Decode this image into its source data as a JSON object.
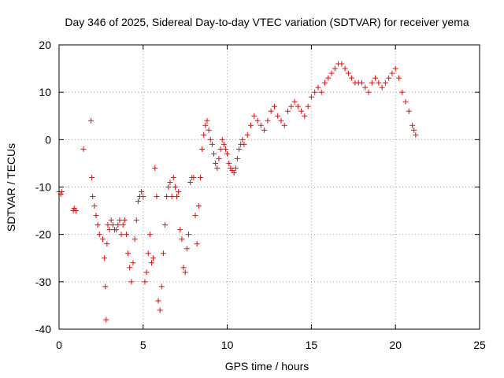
{
  "chart_data": {
    "type": "scatter",
    "title": "Day 346 of 2025, Sidereal Day-to-day VTEC variation (SDTVAR) for receiver yema",
    "xlabel": "GPS time / hours",
    "ylabel": "SDTVAR / TECUs",
    "xlim": [
      0,
      25
    ],
    "ylim": [
      -40,
      20
    ],
    "xticks": [
      0,
      5,
      10,
      15,
      20,
      25
    ],
    "yticks": [
      -40,
      -30,
      -20,
      -10,
      0,
      10,
      20
    ],
    "xtick_labels": [
      "0",
      "5",
      "10",
      "15",
      "20",
      "25"
    ],
    "ytick_labels": [
      "-40",
      "-30",
      "-20",
      "-10",
      "0",
      "10",
      "20"
    ],
    "grid": true,
    "marker": "plus",
    "color": "#ff0000",
    "series": [
      {
        "name": "SDTVAR",
        "x": [
          0.0,
          0.1,
          0.15,
          0.85,
          0.9,
          1.0,
          1.45,
          1.9,
          1.95,
          2.0,
          2.1,
          2.2,
          2.3,
          2.4,
          2.6,
          2.7,
          2.75,
          2.8,
          2.85,
          2.9,
          3.0,
          3.1,
          3.2,
          3.3,
          3.4,
          3.5,
          3.6,
          3.7,
          3.8,
          3.9,
          4.0,
          4.1,
          4.2,
          4.3,
          4.4,
          4.5,
          4.6,
          4.7,
          4.8,
          4.9,
          5.0,
          5.1,
          5.2,
          5.3,
          5.4,
          5.5,
          5.6,
          5.7,
          5.8,
          5.9,
          6.0,
          6.1,
          6.2,
          6.3,
          6.4,
          6.5,
          6.6,
          6.7,
          6.8,
          6.9,
          7.0,
          7.1,
          7.2,
          7.3,
          7.4,
          7.5,
          7.6,
          7.7,
          7.8,
          7.9,
          8.0,
          8.1,
          8.2,
          8.3,
          8.4,
          8.5,
          8.6,
          8.7,
          8.8,
          8.9,
          9.0,
          9.1,
          9.2,
          9.3,
          9.4,
          9.5,
          9.6,
          9.7,
          9.8,
          9.9,
          10.0,
          10.1,
          10.2,
          10.3,
          10.4,
          10.5,
          10.6,
          10.7,
          10.8,
          10.9,
          11.0,
          11.2,
          11.4,
          11.6,
          11.8,
          12.0,
          12.2,
          12.4,
          12.6,
          12.8,
          13.0,
          13.2,
          13.4,
          13.6,
          13.8,
          14.0,
          14.2,
          14.4,
          14.6,
          14.8,
          15.0,
          15.2,
          15.4,
          15.6,
          15.8,
          16.0,
          16.2,
          16.4,
          16.6,
          16.8,
          17.0,
          17.2,
          17.4,
          17.6,
          17.8,
          18.0,
          18.2,
          18.4,
          18.6,
          18.8,
          19.0,
          19.2,
          19.4,
          19.6,
          19.8,
          20.0,
          20.2,
          20.4,
          20.6,
          20.8,
          21.0,
          21.1,
          21.2
        ],
        "y": [
          -11,
          -11.5,
          -11,
          -15,
          -14.5,
          -15,
          -2,
          4,
          -8,
          -12,
          -14,
          -16,
          -18,
          -20,
          -21,
          -25,
          -31,
          -38,
          -22,
          -18,
          -19,
          -17,
          -18,
          -19,
          -19,
          -18,
          -17,
          -20,
          -18,
          -17,
          -20,
          -24,
          -27,
          -30,
          -26,
          -21,
          -17,
          -13,
          -12,
          -11,
          -12,
          -30,
          -28,
          -24,
          -20,
          -26,
          -25,
          -6,
          -12,
          -34,
          -36,
          -31,
          -24,
          -18,
          -12,
          -10,
          -9,
          -12,
          -8,
          -10,
          -12,
          -11,
          -19,
          -21,
          -27,
          -28,
          -23,
          -20,
          -9,
          -8,
          -8,
          -16,
          -22,
          -14,
          -8,
          -2,
          1,
          3,
          4,
          2,
          0,
          -1,
          -3,
          -5,
          -6,
          -4,
          -2,
          0,
          -1,
          -2,
          -3,
          -5,
          -6,
          -6.5,
          -7,
          -6,
          -4,
          -2,
          -1,
          0,
          -1,
          1,
          3,
          5,
          4,
          3,
          2,
          4,
          6,
          7,
          5,
          4,
          3,
          6,
          7,
          8,
          7,
          6,
          5,
          7,
          9,
          10,
          11,
          10,
          12,
          13,
          14,
          15,
          16,
          16,
          15,
          14,
          13,
          12,
          12,
          12,
          11,
          10,
          12,
          13,
          12,
          11,
          12,
          13,
          14,
          15,
          13,
          10,
          8,
          6,
          3,
          2,
          1
        ]
      }
    ]
  }
}
